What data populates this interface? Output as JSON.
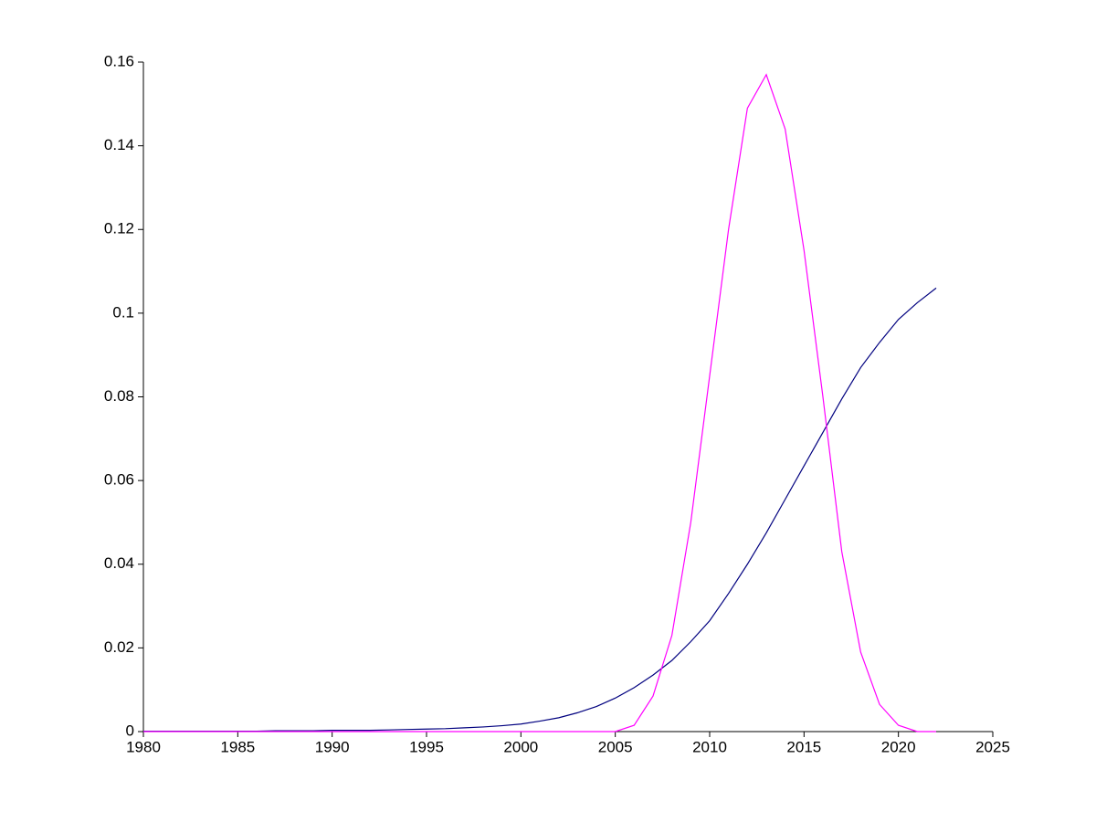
{
  "chart_data": {
    "type": "line",
    "x": [
      1980,
      1981,
      1982,
      1983,
      1984,
      1985,
      1986,
      1987,
      1988,
      1989,
      1990,
      1991,
      1992,
      1993,
      1994,
      1995,
      1996,
      1997,
      1998,
      1999,
      2000,
      2001,
      2002,
      2003,
      2004,
      2005,
      2006,
      2007,
      2008,
      2009,
      2010,
      2011,
      2012,
      2013,
      2014,
      2015,
      2016,
      2017,
      2018,
      2019,
      2020,
      2021,
      2022
    ],
    "series": [
      {
        "color": "#00007f",
        "values": [
          0.0001,
          0.0001,
          0.0001,
          0.0001,
          0.0001,
          0.0001,
          0.0001,
          0.0002,
          0.0002,
          0.0002,
          0.0003,
          0.0003,
          0.0003,
          0.0004,
          0.0005,
          0.0006,
          0.0007,
          0.0009,
          0.0011,
          0.0014,
          0.0018,
          0.0025,
          0.0033,
          0.0045,
          0.006,
          0.008,
          0.0105,
          0.0135,
          0.017,
          0.0215,
          0.0265,
          0.033,
          0.04,
          0.0475,
          0.0555,
          0.0635,
          0.0715,
          0.0795,
          0.087,
          0.093,
          0.0985,
          0.1025,
          0.106
        ]
      },
      {
        "color": "#ff00ff",
        "values": [
          0,
          0,
          0,
          0,
          0,
          0,
          0,
          0,
          0,
          0,
          0,
          0,
          0,
          0,
          0,
          0,
          0,
          0,
          0,
          0,
          0,
          0,
          0,
          0,
          0,
          0,
          0.0015,
          0.0085,
          0.023,
          0.05,
          0.085,
          0.12,
          0.149,
          0.157,
          0.144,
          0.115,
          0.08,
          0.043,
          0.019,
          0.0065,
          0.0015,
          0,
          0
        ]
      }
    ],
    "xlim": [
      1980,
      2025
    ],
    "xticks": [
      1980,
      1985,
      1990,
      1995,
      2000,
      2005,
      2010,
      2015,
      2020,
      2025
    ],
    "ylim": [
      0,
      0.16
    ],
    "yticks": [
      0,
      0.02,
      0.04,
      0.06,
      0.08,
      0.1,
      0.12,
      0.14,
      0.16
    ]
  }
}
